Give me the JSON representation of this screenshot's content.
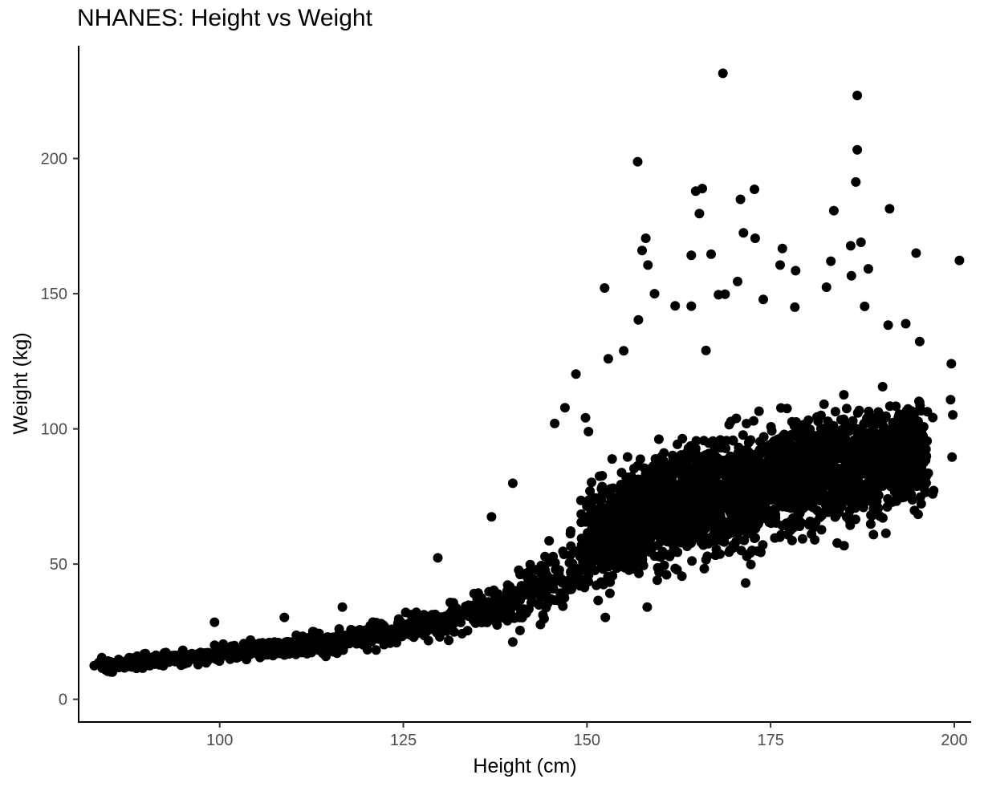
{
  "chart_data": {
    "type": "scatter",
    "title": "NHANES: Height vs Weight",
    "xlabel": "Height (cm)",
    "ylabel": "Weight (kg)",
    "xlim": [
      80.8,
      202.3
    ],
    "ylim": [
      -8.4,
      241.7
    ],
    "xticks": [
      100,
      125,
      150,
      175,
      200
    ],
    "yticks": [
      0,
      50,
      100,
      150,
      200
    ],
    "grid": false,
    "legend": "none",
    "point_color": "#000000",
    "outliers": [
      {
        "x": 168.5,
        "y": 231.5
      },
      {
        "x": 186.8,
        "y": 223.3
      },
      {
        "x": 186.8,
        "y": 203.2
      },
      {
        "x": 156.9,
        "y": 198.8
      },
      {
        "x": 186.6,
        "y": 191.3
      },
      {
        "x": 172.8,
        "y": 188.6
      },
      {
        "x": 165.7,
        "y": 188.9
      },
      {
        "x": 164.8,
        "y": 187.9
      },
      {
        "x": 170.9,
        "y": 184.9
      },
      {
        "x": 191.2,
        "y": 181.4
      },
      {
        "x": 183.6,
        "y": 180.7
      },
      {
        "x": 165.3,
        "y": 179.6
      },
      {
        "x": 171.3,
        "y": 172.5
      },
      {
        "x": 158.0,
        "y": 170.5
      },
      {
        "x": 172.9,
        "y": 170.5
      },
      {
        "x": 187.3,
        "y": 169.0
      },
      {
        "x": 185.9,
        "y": 167.7
      },
      {
        "x": 176.6,
        "y": 166.7
      },
      {
        "x": 157.5,
        "y": 166.0
      },
      {
        "x": 194.8,
        "y": 165.0
      },
      {
        "x": 166.9,
        "y": 164.6
      },
      {
        "x": 164.2,
        "y": 164.2
      },
      {
        "x": 200.7,
        "y": 162.3
      },
      {
        "x": 158.3,
        "y": 160.6
      },
      {
        "x": 176.3,
        "y": 160.6
      },
      {
        "x": 188.3,
        "y": 159.2
      },
      {
        "x": 186.0,
        "y": 156.6
      },
      {
        "x": 152.4,
        "y": 152.1
      },
      {
        "x": 170.5,
        "y": 154.5
      },
      {
        "x": 159.2,
        "y": 150.0
      },
      {
        "x": 168.8,
        "y": 149.8
      },
      {
        "x": 157.0,
        "y": 140.3
      },
      {
        "x": 187.8,
        "y": 145.3
      },
      {
        "x": 174.0,
        "y": 147.9
      },
      {
        "x": 195.3,
        "y": 132.3
      },
      {
        "x": 191.0,
        "y": 138.4
      },
      {
        "x": 193.4,
        "y": 138.9
      },
      {
        "x": 199.6,
        "y": 124.1
      },
      {
        "x": 199.5,
        "y": 110.8
      },
      {
        "x": 199.8,
        "y": 105.2
      },
      {
        "x": 199.7,
        "y": 89.6
      },
      {
        "x": 196.3,
        "y": 95.5
      },
      {
        "x": 197.2,
        "y": 77.2
      },
      {
        "x": 195.5,
        "y": 72.3
      },
      {
        "x": 190.7,
        "y": 61.4
      },
      {
        "x": 185.0,
        "y": 56.8
      },
      {
        "x": 171.6,
        "y": 43.0
      },
      {
        "x": 158.2,
        "y": 34.1
      },
      {
        "x": 152.5,
        "y": 30.3
      },
      {
        "x": 148.5,
        "y": 120.3
      },
      {
        "x": 139.9,
        "y": 79.9
      },
      {
        "x": 137.0,
        "y": 67.5
      },
      {
        "x": 129.7,
        "y": 52.3
      },
      {
        "x": 99.3,
        "y": 28.5
      },
      {
        "x": 108.8,
        "y": 30.3
      },
      {
        "x": 116.7,
        "y": 34.1
      },
      {
        "x": 84.0,
        "y": 11.5
      },
      {
        "x": 85.2,
        "y": 10.1
      },
      {
        "x": 155.0,
        "y": 128.9
      },
      {
        "x": 152.9,
        "y": 125.9
      },
      {
        "x": 147.0,
        "y": 107.8
      },
      {
        "x": 145.6,
        "y": 102.0
      },
      {
        "x": 149.8,
        "y": 104.1
      },
      {
        "x": 150.2,
        "y": 99.0
      },
      {
        "x": 162.0,
        "y": 145.5
      },
      {
        "x": 164.2,
        "y": 145.4
      },
      {
        "x": 166.2,
        "y": 129.0
      },
      {
        "x": 178.3,
        "y": 145.0
      },
      {
        "x": 182.6,
        "y": 152.4
      },
      {
        "x": 183.2,
        "y": 162.0
      },
      {
        "x": 178.4,
        "y": 158.5
      },
      {
        "x": 167.9,
        "y": 149.6
      }
    ],
    "trend_bands": [
      {
        "x_range": [
          84,
          92
        ],
        "y_center_at_range": [
          12.5,
          14.5
        ],
        "y_spread": 1.8
      },
      {
        "x_range": [
          92,
          100
        ],
        "y_center_at_range": [
          14.5,
          16.5
        ],
        "y_spread": 2.0
      },
      {
        "x_range": [
          100,
          110
        ],
        "y_center_at_range": [
          16.5,
          19.5
        ],
        "y_spread": 2.5
      },
      {
        "x_range": [
          110,
          120
        ],
        "y_center_at_range": [
          19.5,
          23.0
        ],
        "y_spread": 3.0
      },
      {
        "x_range": [
          120,
          130
        ],
        "y_center_at_range": [
          23.0,
          28.5
        ],
        "y_spread": 4.0
      },
      {
        "x_range": [
          130,
          140
        ],
        "y_center_at_range": [
          28.5,
          36.0
        ],
        "y_spread": 5.5
      },
      {
        "x_range": [
          140,
          150
        ],
        "y_center_at_range": [
          36.0,
          50.0
        ],
        "y_spread": 9.0
      },
      {
        "x_range": [
          150,
          160
        ],
        "y_center_at_range": [
          60.0,
          70.0
        ],
        "y_spread": 15.0
      },
      {
        "x_range": [
          160,
          175
        ],
        "y_center_at_range": [
          70.0,
          80.0
        ],
        "y_spread": 17.0
      },
      {
        "x_range": [
          175,
          190
        ],
        "y_center_at_range": [
          80.0,
          88.0
        ],
        "y_spread": 16.0
      },
      {
        "x_range": [
          190,
          196
        ],
        "y_center_at_range": [
          88.0,
          92.0
        ],
        "y_spread": 14.0
      }
    ]
  }
}
